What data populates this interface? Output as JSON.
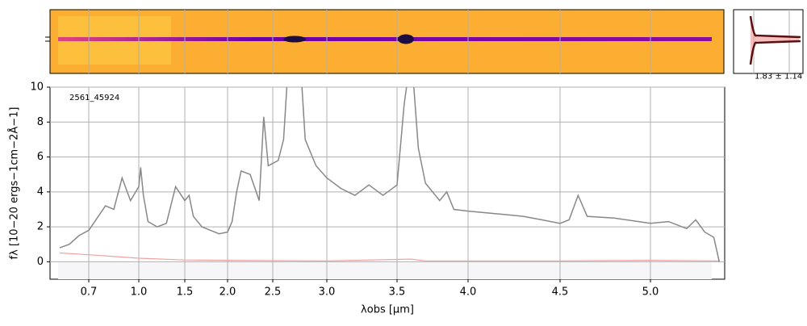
{
  "chart_data": {
    "type": "line",
    "object_label": "2561_45924",
    "profile_annotation": "1.83 ± 1.14",
    "xlabel": "λobs [μm]",
    "ylabel": "fλ [10−20 ergs−1cm−2Å−1]",
    "xlim": [
      0.5,
      5.41
    ],
    "ylim": [
      -1,
      10
    ],
    "xticks": [
      0.7,
      {
        "value": 1,
        "label": "1.0"
      },
      1.5,
      {
        "value": 2,
        "label": "2.0"
      },
      2.5,
      {
        "value": 3,
        "label": "3.0"
      },
      3.5,
      {
        "value": 4,
        "label": "4.0"
      },
      4.5,
      {
        "value": 5,
        "label": "5.0"
      }
    ],
    "yticks": [
      0,
      2,
      4,
      6,
      8,
      10
    ],
    "grid": true,
    "series": [
      {
        "name": "flux",
        "color": "#888888",
        "x": [
          0.55,
          0.6,
          0.65,
          0.7,
          0.75,
          0.8,
          0.85,
          0.9,
          0.95,
          1.0,
          1.02,
          1.05,
          1.1,
          1.2,
          1.3,
          1.4,
          1.5,
          1.55,
          1.6,
          1.7,
          1.8,
          1.9,
          2.0,
          2.05,
          2.1,
          2.15,
          2.25,
          2.35,
          2.4,
          2.45,
          2.55,
          2.6,
          2.65,
          2.7,
          2.75,
          2.8,
          2.9,
          3.0,
          3.1,
          3.2,
          3.3,
          3.4,
          3.45,
          3.5,
          3.55,
          3.6,
          3.65,
          3.7,
          3.8,
          3.85,
          3.9,
          4.0,
          4.1,
          4.2,
          4.3,
          4.4,
          4.5,
          4.55,
          4.6,
          4.65,
          4.8,
          5.0,
          5.1,
          5.2,
          5.25,
          5.3,
          5.35,
          5.38
        ],
        "values": [
          0.8,
          1.0,
          1.5,
          1.8,
          2.5,
          3.2,
          3.0,
          4.8,
          3.5,
          4.3,
          5.4,
          3.8,
          2.3,
          2.0,
          2.2,
          4.3,
          3.5,
          3.8,
          2.6,
          2.0,
          1.8,
          1.6,
          1.7,
          2.3,
          4.0,
          5.2,
          5.0,
          3.5,
          8.3,
          5.5,
          5.8,
          7.0,
          12,
          10,
          12,
          7.0,
          5.5,
          4.8,
          4.2,
          3.8,
          4.4,
          3.8,
          4.1,
          4.4,
          9.0,
          12,
          6.5,
          4.5,
          3.5,
          4.0,
          3.0,
          2.9,
          2.8,
          2.7,
          2.6,
          2.4,
          2.2,
          2.4,
          3.8,
          2.6,
          2.5,
          2.2,
          2.3,
          1.9,
          2.4,
          1.7,
          1.4,
          0.0
        ]
      },
      {
        "name": "error",
        "color": "#f4a0a0",
        "x": [
          0.55,
          0.7,
          1.0,
          1.5,
          2.0,
          3.0,
          3.6,
          3.7,
          4.5,
          5.0,
          5.38
        ],
        "values": [
          0.5,
          0.4,
          0.2,
          0.1,
          0.08,
          0.05,
          0.15,
          0.05,
          0.05,
          0.08,
          0.05
        ]
      }
    ]
  }
}
